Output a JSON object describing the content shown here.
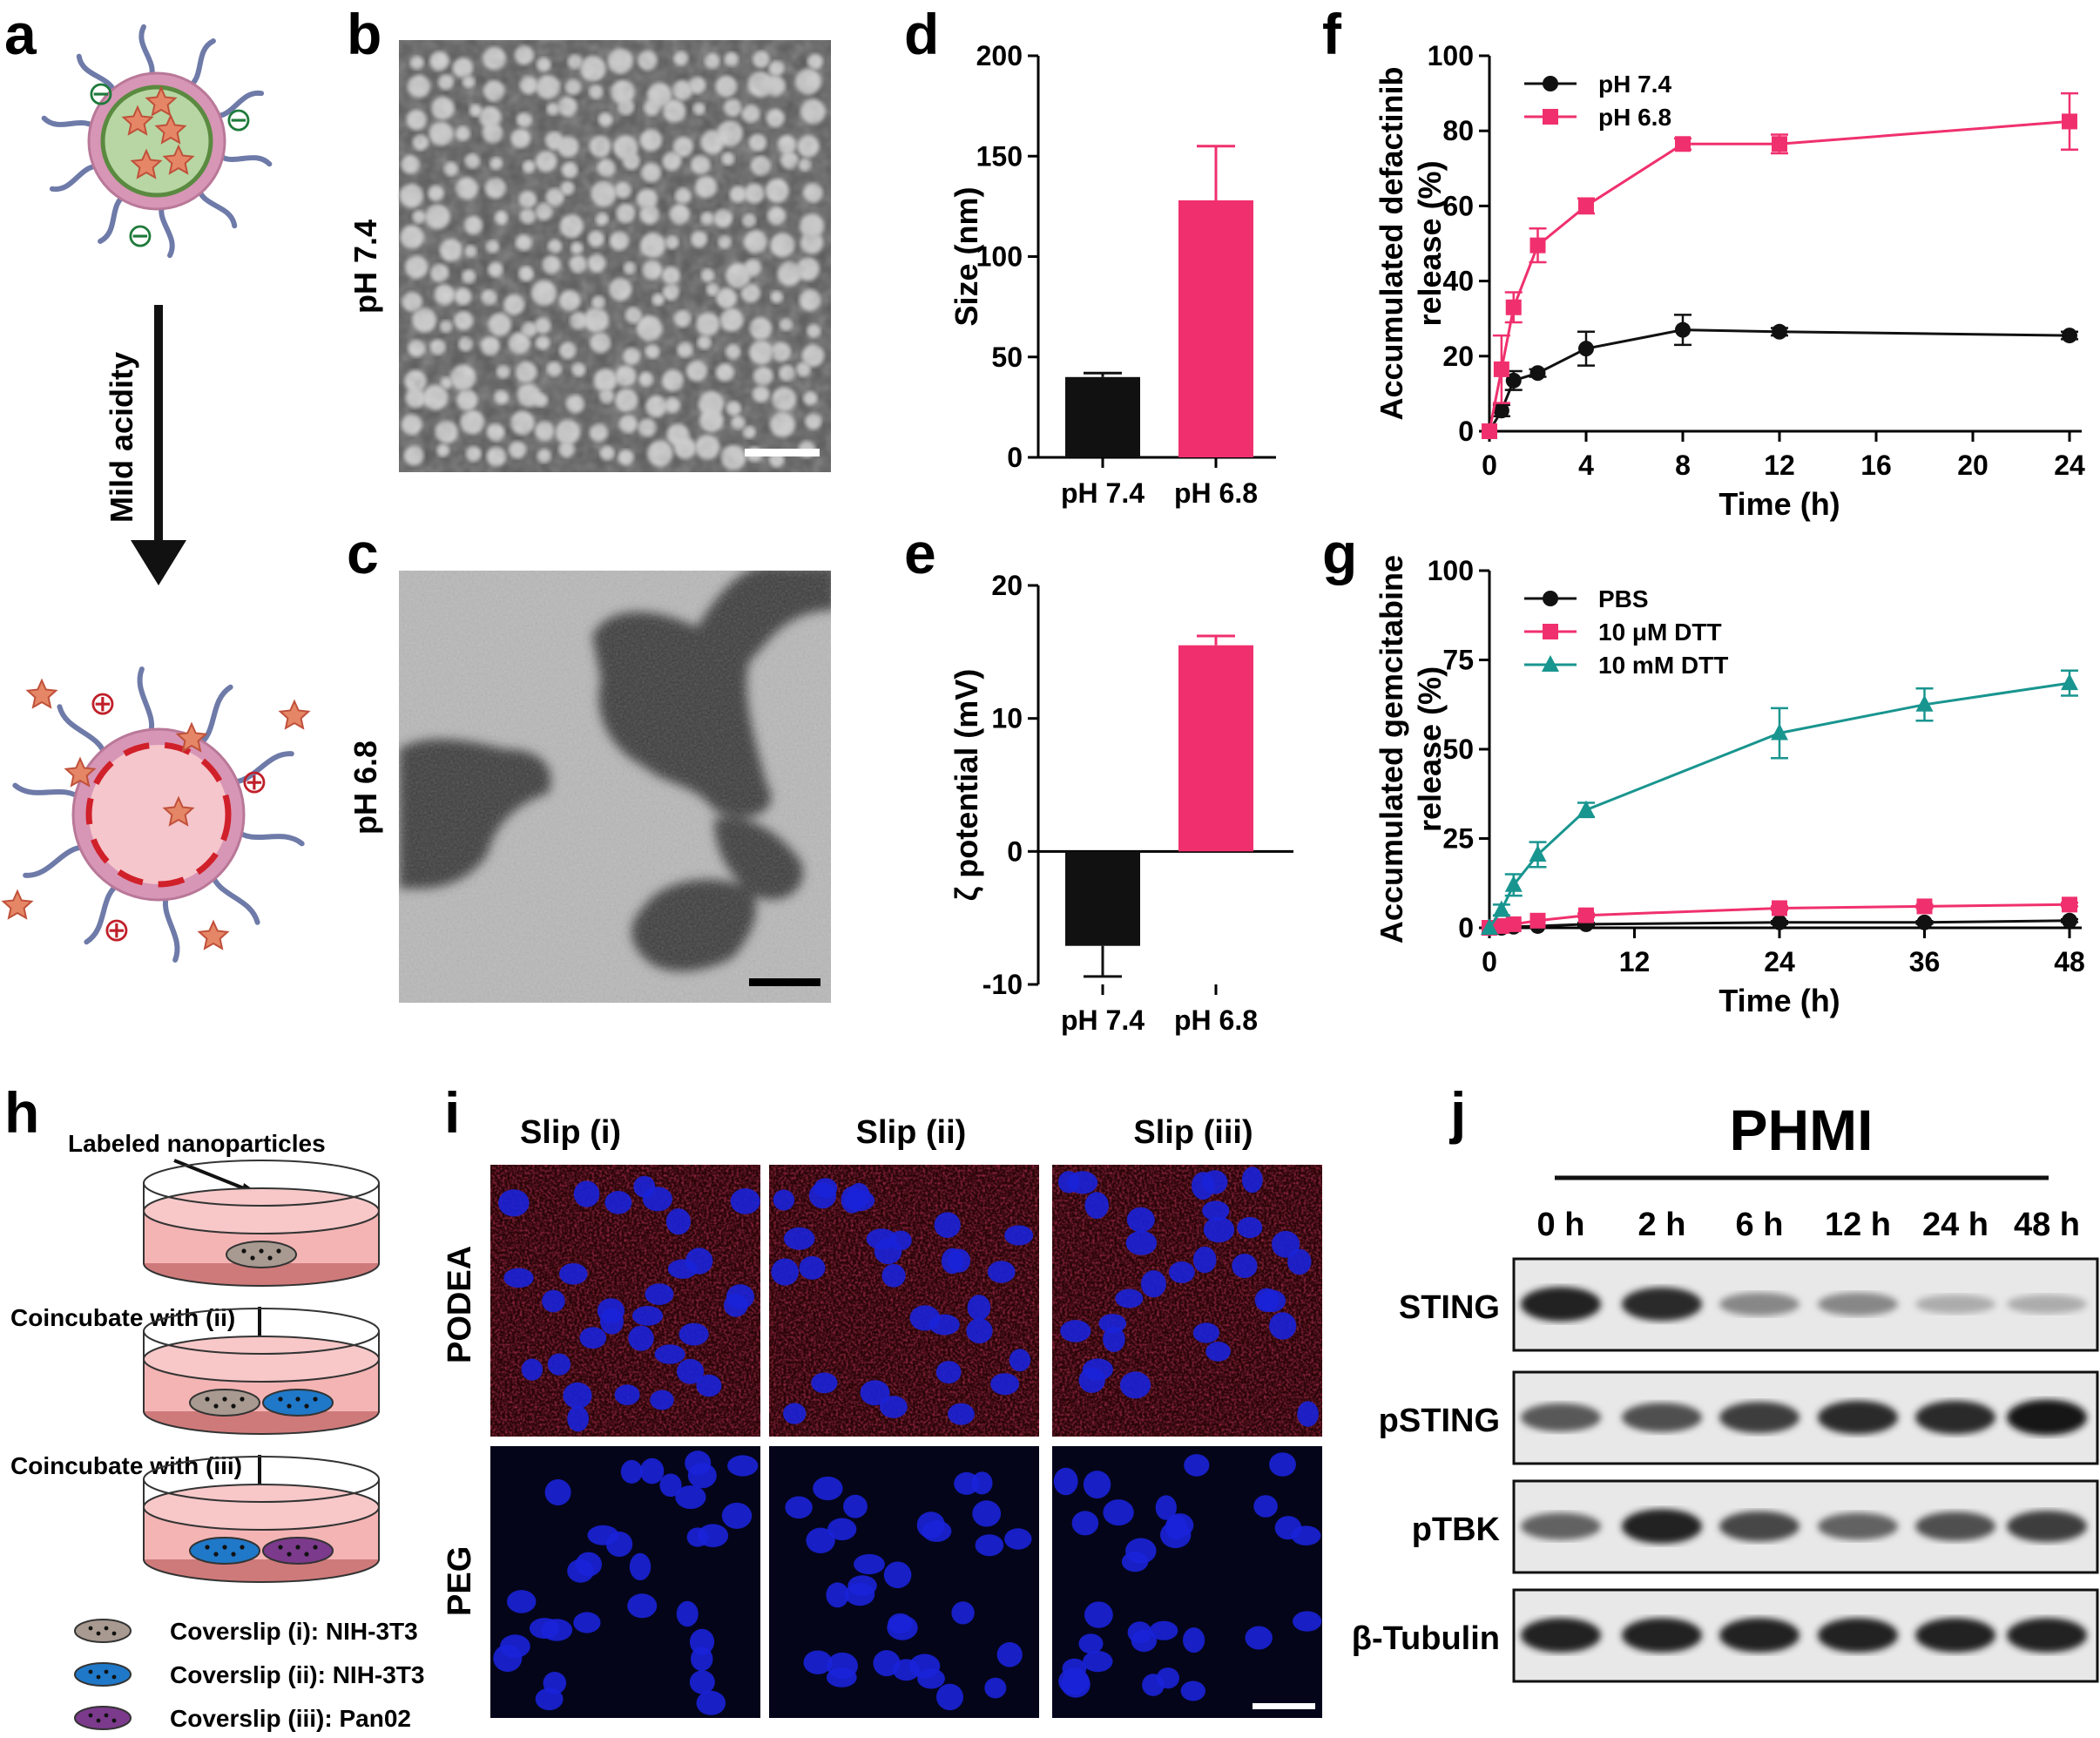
{
  "panel_labels": {
    "a": "a",
    "b": "b",
    "c": "c",
    "d": "d",
    "e": "e",
    "f": "f",
    "g": "g",
    "h": "h",
    "i": "i",
    "j": "j"
  },
  "colors": {
    "black": "#111111",
    "pink": "#f0306e",
    "teal": "#19958f",
    "micelle_core": "#b7d6a3",
    "micelle_shell": "#d796b6",
    "chain": "#6e7aa8",
    "star": "#e58766",
    "cell_red": "#b0202a",
    "cell_blue": "#1a22d8"
  },
  "panel_a": {
    "arrow_label": "Mild acidity",
    "neg_symbol": "⊖",
    "pos_symbol": "⊕"
  },
  "panel_bc": {
    "b_side_label": "pH 7.4",
    "c_side_label": "pH 6.8"
  },
  "chart_data": [
    {
      "panel": "d",
      "type": "bar",
      "categories": [
        "pH 7.4",
        "pH 6.8"
      ],
      "values": [
        40,
        128
      ],
      "errors": [
        2,
        27
      ],
      "bar_colors": [
        "#111111",
        "#f0306e"
      ],
      "ylabel": "Size (nm)",
      "ylim": [
        0,
        200
      ],
      "yticks": [
        "0",
        "50",
        "100",
        "150",
        "200"
      ],
      "ytick_values": [
        0,
        50,
        100,
        150,
        200
      ]
    },
    {
      "panel": "e",
      "type": "bar",
      "categories": [
        "pH 7.4",
        "pH 6.8"
      ],
      "values": [
        -7.1,
        15.5
      ],
      "errors": [
        2.3,
        0.7
      ],
      "bar_colors": [
        "#111111",
        "#f0306e"
      ],
      "ylabel": "ζ potential (mV)",
      "ylim": [
        -10,
        20
      ],
      "yticks": [
        "-10",
        "0",
        "10",
        "20"
      ],
      "ytick_values": [
        -10,
        0,
        10,
        20
      ]
    },
    {
      "panel": "f",
      "type": "line",
      "ylabel_lines": [
        "Accumulated defactinib",
        "release (%)"
      ],
      "xlabel": "Time (h)",
      "xlim": [
        0,
        24
      ],
      "ylim": [
        0,
        100
      ],
      "xticks": [
        "0",
        "4",
        "8",
        "12",
        "16",
        "20",
        "24"
      ],
      "xtick_values": [
        0,
        4,
        8,
        12,
        16,
        20,
        24
      ],
      "yticks": [
        "0",
        "20",
        "40",
        "60",
        "80",
        "100"
      ],
      "ytick_values": [
        0,
        20,
        40,
        60,
        80,
        100
      ],
      "legend_position": "top-left",
      "series": [
        {
          "name": "pH 7.4",
          "color": "#111111",
          "marker": "circle",
          "x": [
            0,
            0.5,
            1,
            2,
            4,
            8,
            12,
            24
          ],
          "y": [
            0,
            5.5,
            13.5,
            15.5,
            22,
            27,
            26.5,
            25.5
          ],
          "err": [
            0,
            1.5,
            2.5,
            1,
            4.5,
            4,
            1,
            1
          ]
        },
        {
          "name": "pH 6.8",
          "color": "#f0306e",
          "marker": "square",
          "x": [
            0,
            0.5,
            1,
            2,
            4,
            8,
            12,
            24
          ],
          "y": [
            0,
            16.5,
            33,
            49.5,
            60,
            76.5,
            76.5,
            82.5
          ],
          "err": [
            0,
            9,
            4,
            4.5,
            2,
            1.5,
            2.5,
            7.5
          ]
        }
      ]
    },
    {
      "panel": "g",
      "type": "line",
      "ylabel_lines": [
        "Accumulated gemcitabine",
        "release (%)"
      ],
      "xlabel": "Time (h)",
      "xlim": [
        0,
        48
      ],
      "ylim": [
        0,
        100
      ],
      "xticks": [
        "0",
        "12",
        "24",
        "36",
        "48"
      ],
      "xtick_values": [
        0,
        12,
        24,
        36,
        48
      ],
      "yticks": [
        "0",
        "25",
        "50",
        "75",
        "100"
      ],
      "ytick_values": [
        0,
        25,
        50,
        75,
        100
      ],
      "legend_position": "top-left",
      "series": [
        {
          "name": "PBS",
          "color": "#111111",
          "marker": "circle",
          "x": [
            0,
            1,
            2,
            4,
            8,
            24,
            36,
            48
          ],
          "y": [
            0,
            0,
            0.3,
            0.5,
            1,
            1.5,
            1.5,
            2
          ],
          "err": [
            0,
            0,
            0,
            0,
            0.4,
            0.4,
            0.4,
            0.4
          ]
        },
        {
          "name": "10 μM DTT",
          "color": "#f0306e",
          "marker": "square",
          "x": [
            0,
            1,
            2,
            4,
            8,
            24,
            36,
            48
          ],
          "y": [
            0,
            0.5,
            1,
            2,
            3.5,
            5.5,
            6,
            6.5
          ],
          "err": [
            0,
            0,
            0,
            0,
            0.5,
            0.5,
            0.5,
            0.5
          ]
        },
        {
          "name": "10 mM DTT",
          "color": "#19958f",
          "marker": "triangle",
          "x": [
            0,
            1,
            2,
            4,
            8,
            24,
            36,
            48
          ],
          "y": [
            0,
            5,
            12,
            20.5,
            33,
            54.5,
            62.5,
            68.5
          ],
          "err": [
            0,
            1.5,
            3,
            3.5,
            2,
            7,
            4.5,
            3.5
          ]
        }
      ]
    }
  ],
  "panel_h": {
    "top_label": "Labeled nanoparticles",
    "step1": "Coincubate with (ii)",
    "step2": "Coincubate with (iii)",
    "legend": [
      "Coverslip (i): NIH-3T3",
      "Coverslip (ii): NIH-3T3",
      "Coverslip (iii): Pan02"
    ],
    "legend_colors": [
      "#a89a90",
      "#1f78c8",
      "#7b3a8c"
    ]
  },
  "panel_i": {
    "columns": [
      "Slip (i)",
      "Slip (ii)",
      "Slip (iii)"
    ],
    "rows": [
      "PODEA",
      "PEG"
    ]
  },
  "panel_j": {
    "title": "PHMI",
    "timepoints": [
      "0 h",
      "2 h",
      "6 h",
      "12 h",
      "24 h",
      "48 h"
    ],
    "rows": [
      {
        "label": "STING",
        "intensity": [
          0.9,
          0.85,
          0.35,
          0.35,
          0.15,
          0.15
        ]
      },
      {
        "label": "pSTING",
        "intensity": [
          0.6,
          0.65,
          0.75,
          0.85,
          0.85,
          0.95
        ]
      },
      {
        "label": "pTBK",
        "intensity": [
          0.55,
          0.9,
          0.7,
          0.55,
          0.65,
          0.75
        ]
      },
      {
        "label": "β-Tubulin",
        "intensity": [
          0.9,
          0.9,
          0.9,
          0.9,
          0.9,
          0.9
        ]
      }
    ]
  }
}
